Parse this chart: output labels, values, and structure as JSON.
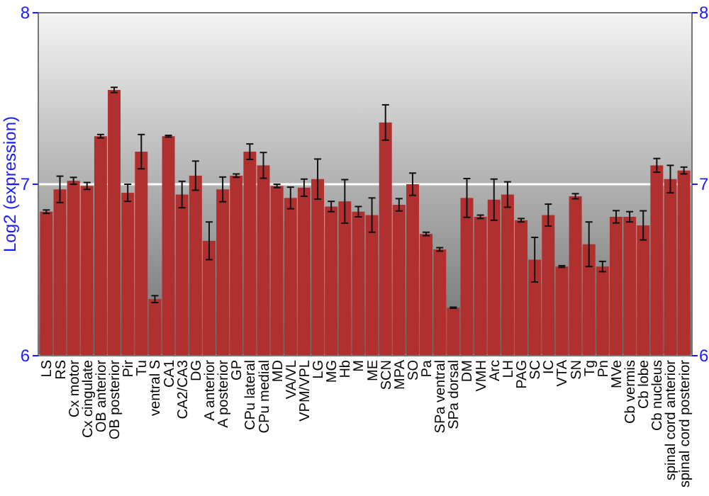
{
  "chart_data": {
    "type": "bar",
    "ylabel": "Log2 (expression)",
    "categories": [
      "LS",
      "RS",
      "Cx motor",
      "Cx cingulate",
      "OB anterior",
      "OB posterior",
      "Pir",
      "Tu",
      "ventral S",
      "CA1",
      "CA2/CA3",
      "DG",
      "A anterior",
      "A posterior",
      "GP",
      "CPu lateral",
      "CPu medial",
      "MD",
      "VA/VL",
      "VPM/VPL",
      "LG",
      "MG",
      "Hb",
      "M",
      "ME",
      "SCN",
      "MPA",
      "SO",
      "Pa",
      "SPa ventral",
      "SPa dorsal",
      "DM",
      "VMH",
      "Arc",
      "LH",
      "PAG",
      "SC",
      "IC",
      "VTA",
      "SN",
      "Tg",
      "Pn",
      "MVe",
      "Cb vermis",
      "Cb lobe",
      "Cb nucleus",
      "spinal cord anterior",
      "spinal cord posterior"
    ],
    "values": [
      6.84,
      6.97,
      7.02,
      6.99,
      7.28,
      7.55,
      6.95,
      7.19,
      6.33,
      7.28,
      6.94,
      7.05,
      6.67,
      6.97,
      7.05,
      7.19,
      7.11,
      6.99,
      6.92,
      6.98,
      7.03,
      6.87,
      6.9,
      6.84,
      6.82,
      7.36,
      6.88,
      7.0,
      6.71,
      6.62,
      6.28,
      6.92,
      6.81,
      6.91,
      6.94,
      6.79,
      6.56,
      6.82,
      6.52,
      6.93,
      6.65,
      6.52,
      6.81,
      6.81,
      6.76,
      7.11,
      7.03,
      7.08
    ],
    "errors": [
      0.01,
      0.077,
      0.02,
      0.02,
      0.01,
      0.015,
      0.05,
      0.1,
      0.02,
      0.005,
      0.077,
      0.085,
      0.11,
      0.072,
      0.01,
      0.045,
      0.075,
      0.01,
      0.063,
      0.05,
      0.117,
      0.03,
      0.127,
      0.03,
      0.1,
      0.103,
      0.036,
      0.065,
      0.01,
      0.01,
      0.003,
      0.113,
      0.01,
      0.12,
      0.074,
      0.01,
      0.13,
      0.064,
      0.005,
      0.015,
      0.13,
      0.03,
      0.036,
      0.03,
      0.085,
      0.04,
      0.08,
      0.02
    ],
    "color": "#b03030",
    "ylim": [
      6,
      8
    ],
    "yticks": [
      6,
      7,
      8
    ],
    "y2lim": [
      6,
      8
    ],
    "y2ticks": [
      6,
      7,
      8
    ],
    "grid": "y"
  }
}
